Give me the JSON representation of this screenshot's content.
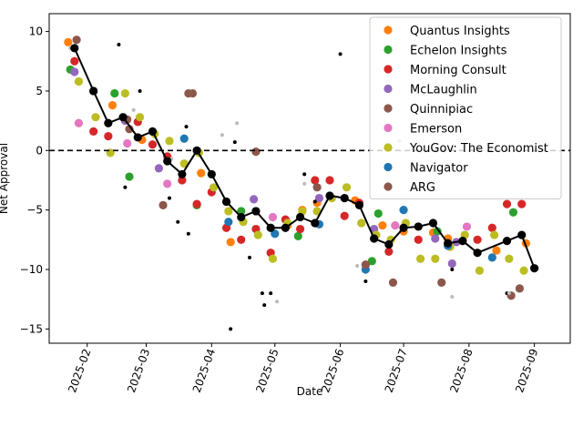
{
  "chart_data": {
    "type": "scatter",
    "title": "",
    "xlabel": "Date",
    "ylabel": "Net Approval",
    "x_type": "date",
    "xlim": [
      "2025-01-14",
      "2025-09-18"
    ],
    "ylim": [
      -16.2,
      11.5
    ],
    "x_ticks": [
      {
        "date": "2025-02-01",
        "label": "2025-02"
      },
      {
        "date": "2025-03-01",
        "label": "2025-03"
      },
      {
        "date": "2025-04-01",
        "label": "2025-04"
      },
      {
        "date": "2025-05-01",
        "label": "2025-05"
      },
      {
        "date": "2025-06-01",
        "label": "2025-06"
      },
      {
        "date": "2025-07-01",
        "label": "2025-07"
      },
      {
        "date": "2025-08-01",
        "label": "2025-08"
      },
      {
        "date": "2025-09-01",
        "label": "2025-09"
      }
    ],
    "y_ticks": [
      -15,
      -10,
      -5,
      0,
      5,
      10
    ],
    "reference_line": {
      "y": 0,
      "style": "dashed",
      "color": "#000000"
    },
    "legend": {
      "placement": "top-right"
    },
    "grid": false,
    "series": [
      {
        "name": "Quantus Insights",
        "color": "#ff7f0e",
        "points": [
          {
            "x": "2025-01-23",
            "y": 9.1
          },
          {
            "x": "2025-02-13",
            "y": 3.8
          },
          {
            "x": "2025-02-27",
            "y": 0.9
          },
          {
            "x": "2025-03-27",
            "y": -1.9
          },
          {
            "x": "2025-04-10",
            "y": -7.7
          },
          {
            "x": "2025-05-07",
            "y": -6.3
          },
          {
            "x": "2025-05-14",
            "y": -5.0
          },
          {
            "x": "2025-05-21",
            "y": -4.4
          },
          {
            "x": "2025-06-08",
            "y": -4.2
          },
          {
            "x": "2025-06-21",
            "y": -6.3
          },
          {
            "x": "2025-07-01",
            "y": -6.8
          },
          {
            "x": "2025-07-15",
            "y": -6.9
          },
          {
            "x": "2025-07-22",
            "y": -7.4
          },
          {
            "x": "2025-08-14",
            "y": -8.4
          },
          {
            "x": "2025-08-28",
            "y": -7.8
          }
        ]
      },
      {
        "name": "Echelon Insights",
        "color": "#2ca02c",
        "points": [
          {
            "x": "2025-01-24",
            "y": 6.8
          },
          {
            "x": "2025-02-14",
            "y": 4.8
          },
          {
            "x": "2025-02-21",
            "y": -2.2
          },
          {
            "x": "2025-03-25",
            "y": -4.6
          },
          {
            "x": "2025-04-15",
            "y": -5.1
          },
          {
            "x": "2025-05-12",
            "y": -7.2
          },
          {
            "x": "2025-06-16",
            "y": -9.3
          },
          {
            "x": "2025-06-19",
            "y": -5.3
          },
          {
            "x": "2025-07-17",
            "y": -6.8
          },
          {
            "x": "2025-08-22",
            "y": -5.2
          }
        ]
      },
      {
        "name": "Morning Consult",
        "color": "#d62728",
        "points": [
          {
            "x": "2025-01-26",
            "y": 7.5
          },
          {
            "x": "2025-02-04",
            "y": 1.6
          },
          {
            "x": "2025-02-11",
            "y": 1.2
          },
          {
            "x": "2025-02-25",
            "y": 2.4
          },
          {
            "x": "2025-03-04",
            "y": 0.5
          },
          {
            "x": "2025-03-11",
            "y": -0.5
          },
          {
            "x": "2025-03-18",
            "y": -2.5
          },
          {
            "x": "2025-03-25",
            "y": -4.5
          },
          {
            "x": "2025-04-01",
            "y": -3.5
          },
          {
            "x": "2025-04-08",
            "y": -6.5
          },
          {
            "x": "2025-04-15",
            "y": -7.5
          },
          {
            "x": "2025-04-22",
            "y": -6.6
          },
          {
            "x": "2025-04-29",
            "y": -8.6
          },
          {
            "x": "2025-05-06",
            "y": -5.8
          },
          {
            "x": "2025-05-13",
            "y": -6.6
          },
          {
            "x": "2025-05-20",
            "y": -2.5
          },
          {
            "x": "2025-05-27",
            "y": -2.5
          },
          {
            "x": "2025-06-03",
            "y": -5.5
          },
          {
            "x": "2025-06-10",
            "y": -4.4
          },
          {
            "x": "2025-06-24",
            "y": -8.5
          },
          {
            "x": "2025-07-08",
            "y": -7.5
          },
          {
            "x": "2025-07-22",
            "y": -8.0
          },
          {
            "x": "2025-08-05",
            "y": -7.5
          },
          {
            "x": "2025-08-12",
            "y": -6.5
          },
          {
            "x": "2025-08-19",
            "y": -4.5
          },
          {
            "x": "2025-08-26",
            "y": -4.5
          }
        ]
      },
      {
        "name": "McLaughlin",
        "color": "#9467bd",
        "points": [
          {
            "x": "2025-01-26",
            "y": 6.6
          },
          {
            "x": "2025-02-19",
            "y": 2.5
          },
          {
            "x": "2025-03-07",
            "y": -1.5
          },
          {
            "x": "2025-04-21",
            "y": -4.1
          },
          {
            "x": "2025-05-22",
            "y": -4.0
          },
          {
            "x": "2025-06-17",
            "y": -6.6
          },
          {
            "x": "2025-07-16",
            "y": -7.4
          },
          {
            "x": "2025-07-24",
            "y": -9.5
          },
          {
            "x": "2025-07-26",
            "y": -7.7
          }
        ]
      },
      {
        "name": "Quinnipiac",
        "color": "#8c564b",
        "points": [
          {
            "x": "2025-01-27",
            "y": 9.3
          },
          {
            "x": "2025-02-20",
            "y": 2.6
          },
          {
            "x": "2025-03-09",
            "y": -4.6
          },
          {
            "x": "2025-03-23",
            "y": 4.8
          },
          {
            "x": "2025-04-22",
            "y": -0.1
          },
          {
            "x": "2025-05-21",
            "y": -3.1
          },
          {
            "x": "2025-06-13",
            "y": -9.6
          },
          {
            "x": "2025-06-26",
            "y": -11.1
          },
          {
            "x": "2025-07-19",
            "y": -11.1
          },
          {
            "x": "2025-08-25",
            "y": -11.6
          }
        ]
      },
      {
        "name": "Emerson",
        "color": "#e377c2",
        "points": [
          {
            "x": "2025-01-28",
            "y": 2.3
          },
          {
            "x": "2025-02-20",
            "y": 0.6
          },
          {
            "x": "2025-03-11",
            "y": -2.8
          },
          {
            "x": "2025-04-30",
            "y": -5.6
          },
          {
            "x": "2025-06-27",
            "y": -6.3
          },
          {
            "x": "2025-07-31",
            "y": -6.4
          }
        ]
      },
      {
        "name": "YouGov: The Economist",
        "color": "#bcbd22",
        "points": [
          {
            "x": "2025-01-28",
            "y": 5.8
          },
          {
            "x": "2025-02-05",
            "y": 2.8
          },
          {
            "x": "2025-02-12",
            "y": -0.2
          },
          {
            "x": "2025-02-19",
            "y": 4.8
          },
          {
            "x": "2025-02-26",
            "y": 2.8
          },
          {
            "x": "2025-03-05",
            "y": 1.4
          },
          {
            "x": "2025-03-12",
            "y": 0.8
          },
          {
            "x": "2025-03-19",
            "y": -1.1
          },
          {
            "x": "2025-03-26",
            "y": -0.2
          },
          {
            "x": "2025-04-02",
            "y": -3.1
          },
          {
            "x": "2025-04-09",
            "y": -5.1
          },
          {
            "x": "2025-04-16",
            "y": -6.0
          },
          {
            "x": "2025-04-23",
            "y": -7.1
          },
          {
            "x": "2025-04-30",
            "y": -9.1
          },
          {
            "x": "2025-05-07",
            "y": -6.1
          },
          {
            "x": "2025-05-14",
            "y": -5.1
          },
          {
            "x": "2025-05-21",
            "y": -5.1
          },
          {
            "x": "2025-05-28",
            "y": -4.0
          },
          {
            "x": "2025-06-04",
            "y": -3.1
          },
          {
            "x": "2025-06-11",
            "y": -6.1
          },
          {
            "x": "2025-06-18",
            "y": -7.1
          },
          {
            "x": "2025-06-25",
            "y": -7.5
          },
          {
            "x": "2025-07-02",
            "y": -6.1
          },
          {
            "x": "2025-07-09",
            "y": -9.1
          },
          {
            "x": "2025-07-16",
            "y": -9.1
          },
          {
            "x": "2025-07-23",
            "y": -8.1
          },
          {
            "x": "2025-07-30",
            "y": -7.1
          },
          {
            "x": "2025-08-06",
            "y": -10.1
          },
          {
            "x": "2025-08-13",
            "y": -7.1
          },
          {
            "x": "2025-08-20",
            "y": -9.1
          },
          {
            "x": "2025-08-27",
            "y": -10.1
          }
        ]
      },
      {
        "name": "Navigator",
        "color": "#1f77b4",
        "points": [
          {
            "x": "2025-02-04",
            "y": 5.0
          },
          {
            "x": "2025-03-19",
            "y": 1.0
          },
          {
            "x": "2025-04-09",
            "y": -6.0
          },
          {
            "x": "2025-05-01",
            "y": -7.0
          },
          {
            "x": "2025-05-22",
            "y": -6.2
          },
          {
            "x": "2025-06-13",
            "y": -10.0
          },
          {
            "x": "2025-07-01",
            "y": -5.0
          },
          {
            "x": "2025-07-22",
            "y": -8.0
          },
          {
            "x": "2025-08-12",
            "y": -9.0
          }
        ]
      },
      {
        "name": "ARG",
        "color": "#8c564b",
        "points": [
          {
            "x": "2025-02-21",
            "y": 1.8
          },
          {
            "x": "2025-03-21",
            "y": 4.8
          },
          {
            "x": "2025-06-13",
            "y": -9.6
          },
          {
            "x": "2025-08-21",
            "y": -12.2
          }
        ]
      },
      {
        "name": "",
        "color": "#000000",
        "style": "line",
        "points": [
          {
            "x": "2025-01-26",
            "y": 8.6
          },
          {
            "x": "2025-02-04",
            "y": 5.0
          },
          {
            "x": "2025-02-11",
            "y": 2.3
          },
          {
            "x": "2025-02-18",
            "y": 2.8
          },
          {
            "x": "2025-02-25",
            "y": 1.1
          },
          {
            "x": "2025-03-04",
            "y": 1.6
          },
          {
            "x": "2025-03-11",
            "y": -0.9
          },
          {
            "x": "2025-03-18",
            "y": -2.0
          },
          {
            "x": "2025-03-25",
            "y": 0.0
          },
          {
            "x": "2025-04-01",
            "y": -2.0
          },
          {
            "x": "2025-04-08",
            "y": -4.3
          },
          {
            "x": "2025-04-15",
            "y": -5.6
          },
          {
            "x": "2025-04-22",
            "y": -5.1
          },
          {
            "x": "2025-04-29",
            "y": -6.5
          },
          {
            "x": "2025-05-06",
            "y": -6.5
          },
          {
            "x": "2025-05-13",
            "y": -5.6
          },
          {
            "x": "2025-05-20",
            "y": -6.1
          },
          {
            "x": "2025-05-27",
            "y": -3.8
          },
          {
            "x": "2025-06-03",
            "y": -4.0
          },
          {
            "x": "2025-06-10",
            "y": -4.6
          },
          {
            "x": "2025-06-17",
            "y": -7.4
          },
          {
            "x": "2025-06-24",
            "y": -7.9
          },
          {
            "x": "2025-07-01",
            "y": -6.5
          },
          {
            "x": "2025-07-08",
            "y": -6.4
          },
          {
            "x": "2025-07-15",
            "y": -6.1
          },
          {
            "x": "2025-07-22",
            "y": -7.8
          },
          {
            "x": "2025-07-29",
            "y": -7.6
          },
          {
            "x": "2025-08-05",
            "y": -8.6
          },
          {
            "x": "2025-08-19",
            "y": -7.6
          },
          {
            "x": "2025-08-26",
            "y": -7.1
          },
          {
            "x": "2025-09-01",
            "y": -9.9
          }
        ]
      },
      {
        "name": "",
        "color": "#000000",
        "style": "small-dots",
        "points": [
          {
            "x": "2025-02-16",
            "y": 8.9
          },
          {
            "x": "2025-02-26",
            "y": 5.0
          },
          {
            "x": "2025-02-19",
            "y": -3.1
          },
          {
            "x": "2025-03-12",
            "y": -4.0
          },
          {
            "x": "2025-03-16",
            "y": -6.0
          },
          {
            "x": "2025-03-20",
            "y": 2.0
          },
          {
            "x": "2025-03-21",
            "y": -7.0
          },
          {
            "x": "2025-04-10",
            "y": -15.0
          },
          {
            "x": "2025-04-12",
            "y": 0.7
          },
          {
            "x": "2025-04-19",
            "y": -9.0
          },
          {
            "x": "2025-04-25",
            "y": -12.0
          },
          {
            "x": "2025-04-26",
            "y": -13.0
          },
          {
            "x": "2025-04-29",
            "y": -12.0
          },
          {
            "x": "2025-05-15",
            "y": -2.0
          },
          {
            "x": "2025-05-20",
            "y": -4.3
          },
          {
            "x": "2025-06-01",
            "y": 8.1
          },
          {
            "x": "2025-06-13",
            "y": -11.0
          },
          {
            "x": "2025-07-24",
            "y": -10.0
          },
          {
            "x": "2025-08-19",
            "y": -12.0
          }
        ]
      },
      {
        "name": "",
        "color": "#bbbbbb",
        "style": "small-dots",
        "points": [
          {
            "x": "2025-01-24",
            "y": 8.6
          },
          {
            "x": "2025-02-23",
            "y": 3.4
          },
          {
            "x": "2025-03-13",
            "y": -0.7
          },
          {
            "x": "2025-04-06",
            "y": 1.3
          },
          {
            "x": "2025-04-13",
            "y": 2.3
          },
          {
            "x": "2025-05-02",
            "y": -12.7
          },
          {
            "x": "2025-05-15",
            "y": -2.8
          },
          {
            "x": "2025-06-09",
            "y": -9.7
          },
          {
            "x": "2025-06-29",
            "y": 0.8
          },
          {
            "x": "2025-07-24",
            "y": -12.3
          },
          {
            "x": "2025-08-20",
            "y": -12.0
          }
        ]
      }
    ]
  }
}
